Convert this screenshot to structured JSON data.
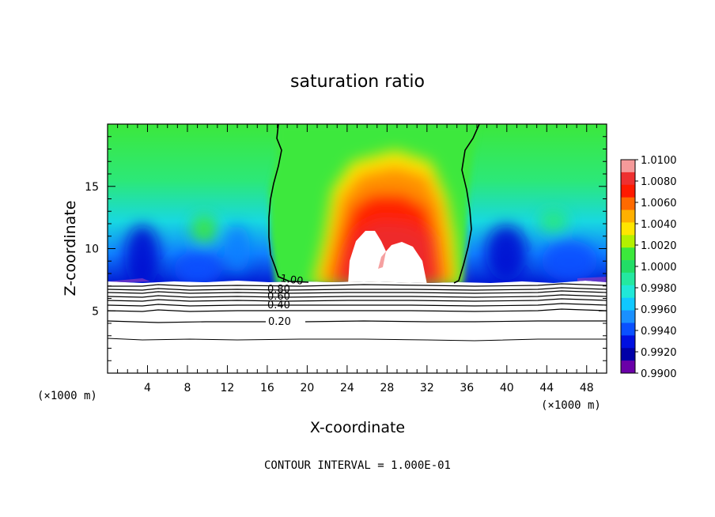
{
  "chart_data": {
    "type": "heatmap",
    "title": "saturation ratio",
    "xlabel": "X-coordinate",
    "ylabel": "Z-coordinate",
    "x_unit_left": "(×1000 m)",
    "x_unit_right": "(×1000 m)",
    "xlim": [
      0,
      50
    ],
    "ylim": [
      0,
      20
    ],
    "xticks": [
      "4",
      "8",
      "12",
      "16",
      "20",
      "24",
      "28",
      "32",
      "36",
      "40",
      "44",
      "48"
    ],
    "yticks": [
      "5",
      "10",
      "15"
    ],
    "colorbar": {
      "labels": [
        "1.0100",
        "1.0080",
        "1.0060",
        "1.0040",
        "1.0020",
        "1.0000",
        "0.9980",
        "0.9960",
        "0.9940",
        "0.9920",
        "0.9900"
      ],
      "colors": [
        "#f59a9a",
        "#ee3030",
        "#ff1a00",
        "#ff6a00",
        "#ffb000",
        "#ffe600",
        "#b4f000",
        "#3ce83c",
        "#22dd66",
        "#24e8a0",
        "#20e8d8",
        "#10c8ff",
        "#1a90ff",
        "#0a50ff",
        "#0010e0",
        "#0000a8",
        "#6a00a8"
      ]
    },
    "contour_labels": [
      "1.00",
      "0.80",
      "0.60",
      "0.40",
      "0.20"
    ],
    "footer": "CONTOUR INTERVAL = 1.000E-01"
  }
}
